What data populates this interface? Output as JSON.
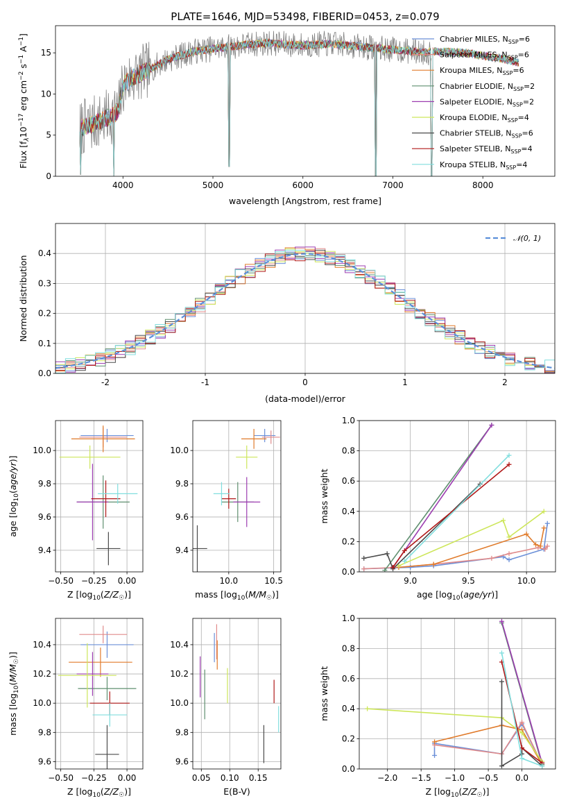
{
  "title": "PLATE=1646, MJD=53498, FIBERID=0453, z=0.079",
  "colors": {
    "chabrier_miles": "#6a8fd8",
    "salpeter_miles": "#e08a8a",
    "kroupa_miles": "#e07a2a",
    "chabrier_elodie": "#5f8f6f",
    "salpeter_elodie": "#9c3cb0",
    "kroupa_elodie": "#cde65a",
    "chabrier_stelib": "#4a4a4a",
    "salpeter_stelib": "#b01818",
    "kroupa_stelib": "#80dede",
    "spectrum": "#808080",
    "gauss": "#5b8fd9",
    "grid": "#b0b0b0"
  },
  "chart_data": [
    {
      "id": "spectrum",
      "type": "line",
      "xlabel": "wavelength [Angstrom, rest frame]",
      "ylabel": "Flux [f$_\\lambda$10$^{-17}$ erg cm$^{-2}$ s$^{-1}$ A$^{-1}$]",
      "ylabel_parts": [
        "Flux [f",
        "λ",
        "10",
        "−17",
        " erg cm",
        "−2",
        " s",
        "−1",
        " A",
        "−1",
        "]"
      ],
      "xlim": [
        3250,
        8800
      ],
      "ylim": [
        0,
        18.3
      ],
      "xticks": [
        4000,
        5000,
        6000,
        7000,
        8000
      ],
      "yticks": [
        0,
        5,
        10,
        15
      ],
      "grid": false,
      "legend_placement": "right",
      "series": [
        {
          "name": "Chabrier MILES",
          "nssp": "6"
        },
        {
          "name": "Salpeter MILES",
          "nssp": "6"
        },
        {
          "name": "Kroupa MILES",
          "nssp": "6"
        },
        {
          "name": "Chabrier ELODIE",
          "nssp": "2"
        },
        {
          "name": "Salpeter ELODIE",
          "nssp": "2"
        },
        {
          "name": "Kroupa ELODIE",
          "nssp": "4"
        },
        {
          "name": "Chabrier STELIB",
          "nssp": "6"
        },
        {
          "name": "Salpeter STELIB",
          "nssp": "4"
        },
        {
          "name": "Kroupa STELIB",
          "nssp": "4"
        }
      ],
      "legend_suffix": ", N",
      "legend_sub": "SSP",
      "continuum": {
        "x": [
          3520,
          3700,
          3850,
          3950,
          4000,
          4100,
          4300,
          4500,
          4800,
          5000,
          5300,
          5600,
          6000,
          6300,
          6600,
          7000,
          7400
        ],
        "y": [
          5.8,
          6.5,
          7.2,
          8.0,
          11.0,
          12.0,
          13.0,
          14.2,
          15.2,
          15.5,
          15.9,
          16.2,
          15.9,
          16.1,
          15.8,
          15.4,
          15.0
        ]
      },
      "continuum_model_ext": {
        "x": [
          7400,
          7800,
          8200,
          8400
        ],
        "y": [
          15.2,
          15.0,
          14.3,
          13.8
        ]
      },
      "dips": [
        {
          "x": 3530,
          "y": 0.2
        },
        {
          "x": 3900,
          "y": 0
        },
        {
          "x": 5180,
          "y": 1.2
        },
        {
          "x": 6810,
          "y": 0
        },
        {
          "x": 7430,
          "y": 0
        }
      ]
    },
    {
      "id": "residuals",
      "type": "histogram",
      "xlabel": "(data-model)/error",
      "ylabel": "Normed distribution",
      "xlim": [
        -2.5,
        2.5
      ],
      "ylim": [
        0,
        0.5
      ],
      "xticks": [
        -2,
        -1,
        0,
        1,
        2
      ],
      "yticks": [
        0,
        0.1,
        0.2,
        0.3,
        0.4
      ],
      "grid": true,
      "legend": [
        "𝒩(0, 1)"
      ],
      "legend_placement": "top-right",
      "bin_width": 0.1
    },
    {
      "id": "age_vs_Z",
      "type": "scatter-errorbar",
      "xlabel": "Z [log₁₀(Z/Z☉)]",
      "ylabel": "age  [log₁₀(age/yr)]",
      "xlim": [
        -0.54,
        0.12
      ],
      "ylim": [
        9.27,
        10.18
      ],
      "xticks": [
        -0.5,
        -0.25,
        0.0
      ],
      "xtick_labels": [
        "−0.50",
        "−0.25",
        "0.00"
      ],
      "yticks": [
        9.4,
        9.6,
        9.8,
        10.0
      ],
      "grid": true,
      "points": [
        {
          "s": "chabrier_miles",
          "x": -0.15,
          "xerr": 0.2,
          "y": 10.09,
          "yerr": 0.04
        },
        {
          "s": "salpeter_miles",
          "x": -0.18,
          "xerr": 0.18,
          "y": 10.08,
          "yerr": 0.06
        },
        {
          "s": "kroupa_miles",
          "x": -0.18,
          "xerr": 0.24,
          "y": 10.07,
          "yerr": 0.08
        },
        {
          "s": "chabrier_elodie",
          "x": -0.18,
          "xerr": 0.2,
          "y": 9.69,
          "yerr": 0.16
        },
        {
          "s": "salpeter_elodie",
          "x": -0.26,
          "xerr": 0.12,
          "y": 9.69,
          "yerr": 0.23
        },
        {
          "s": "kroupa_elodie",
          "x": -0.28,
          "xerr": 0.23,
          "y": 9.96,
          "yerr": 0.07
        },
        {
          "s": "chabrier_stelib",
          "x": -0.14,
          "xerr": 0.09,
          "y": 9.41,
          "yerr": 0.1
        },
        {
          "s": "salpeter_stelib",
          "x": -0.16,
          "xerr": 0.11,
          "y": 9.71,
          "yerr": 0.11
        },
        {
          "s": "kroupa_stelib",
          "x": -0.07,
          "xerr": 0.15,
          "y": 9.74,
          "yerr": 0.06
        }
      ]
    },
    {
      "id": "age_vs_mass",
      "type": "scatter-errorbar",
      "xlabel": "mass [log₁₀(M/M☉)]",
      "xlim": [
        9.6,
        10.58
      ],
      "ylim": [
        9.27,
        10.18
      ],
      "xticks": [
        10.0,
        10.5
      ],
      "xtick_labels": [
        "10.0",
        "10.5"
      ],
      "yticks": [
        9.4,
        9.6,
        9.8,
        10.0
      ],
      "grid": true,
      "points": [
        {
          "s": "chabrier_miles",
          "x": 10.4,
          "xerr": 0.12,
          "y": 10.09,
          "yerr": 0.04
        },
        {
          "s": "salpeter_miles",
          "x": 10.47,
          "xerr": 0.1,
          "y": 10.08,
          "yerr": 0.04
        },
        {
          "s": "kroupa_miles",
          "x": 10.28,
          "xerr": 0.14,
          "y": 10.07,
          "yerr": 0.06
        },
        {
          "s": "chabrier_elodie",
          "x": 10.1,
          "xerr": 0.18,
          "y": 9.69,
          "yerr": 0.12
        },
        {
          "s": "salpeter_elodie",
          "x": 10.2,
          "xerr": 0.15,
          "y": 9.69,
          "yerr": 0.15
        },
        {
          "s": "kroupa_elodie",
          "x": 10.2,
          "xerr": 0.12,
          "y": 9.96,
          "yerr": 0.07
        },
        {
          "s": "chabrier_stelib",
          "x": 9.65,
          "xerr": 0.11,
          "y": 9.41,
          "yerr": 0.14
        },
        {
          "s": "salpeter_stelib",
          "x": 10.0,
          "xerr": 0.08,
          "y": 9.71,
          "yerr": 0.06
        },
        {
          "s": "kroupa_stelib",
          "x": 9.92,
          "xerr": 0.09,
          "y": 9.74,
          "yerr": 0.07
        }
      ]
    },
    {
      "id": "weight_vs_age",
      "type": "line",
      "xlabel": "age  [log₁₀(age/yr)]",
      "ylabel": "mass weight",
      "xlim": [
        8.56,
        10.25
      ],
      "ylim": [
        0,
        1.0
      ],
      "xticks": [
        9.0,
        9.5,
        10.0
      ],
      "xtick_labels": [
        "9.0",
        "9.5",
        "10.0"
      ],
      "yticks": [
        0,
        0.2,
        0.4,
        0.6,
        0.8,
        1.0
      ],
      "ytick_labels": [
        "0.0",
        "0.2",
        "0.4",
        "0.6",
        "0.8",
        "1.0"
      ],
      "grid": true,
      "series": [
        {
          "s": "chabrier_miles",
          "x": [
            8.6,
            9.0,
            9.2,
            9.8,
            9.85,
            10.15,
            10.18
          ],
          "y": [
            0.02,
            0.03,
            0.04,
            0.1,
            0.08,
            0.15,
            0.32
          ]
        },
        {
          "s": "salpeter_miles",
          "x": [
            8.6,
            8.9,
            9.2,
            9.7,
            9.85,
            10.1,
            10.16,
            10.18
          ],
          "y": [
            0.02,
            0.03,
            0.05,
            0.09,
            0.12,
            0.16,
            0.15,
            0.17
          ]
        },
        {
          "s": "kroupa_miles",
          "x": [
            8.9,
            9.2,
            10.0,
            10.08,
            10.12,
            10.15
          ],
          "y": [
            0.03,
            0.05,
            0.25,
            0.18,
            0.17,
            0.29
          ]
        },
        {
          "s": "chabrier_elodie",
          "x": [
            8.78,
            9.7
          ],
          "y": [
            0.01,
            0.97
          ]
        },
        {
          "s": "salpeter_elodie",
          "x": [
            8.85,
            9.7
          ],
          "y": [
            0.03,
            0.97
          ]
        },
        {
          "s": "kroupa_elodie",
          "x": [
            8.9,
            9.8,
            9.85,
            10.15
          ],
          "y": [
            0.04,
            0.34,
            0.23,
            0.4
          ]
        },
        {
          "s": "chabrier_stelib",
          "x": [
            8.6,
            8.8,
            8.85,
            9.6
          ],
          "y": [
            0.09,
            0.12,
            0.02,
            0.58
          ]
        },
        {
          "s": "salpeter_stelib",
          "x": [
            8.85,
            8.95,
            9.85
          ],
          "y": [
            0.03,
            0.14,
            0.71
          ]
        },
        {
          "s": "kroupa_stelib",
          "x": [
            8.95,
            9.85
          ],
          "y": [
            0.07,
            0.77
          ]
        }
      ]
    },
    {
      "id": "mass_vs_Z",
      "type": "scatter-errorbar",
      "xlabel": "Z [log₁₀(Z/Z☉)]",
      "ylabel": "mass [log₁₀(M/M☉)]",
      "xlim": [
        -0.54,
        0.12
      ],
      "ylim": [
        9.55,
        10.58
      ],
      "xticks": [
        -0.5,
        -0.25,
        0.0
      ],
      "xtick_labels": [
        "−0.50",
        "−0.25",
        "0.00"
      ],
      "yticks": [
        9.6,
        9.8,
        10.0,
        10.2,
        10.4
      ],
      "grid": true,
      "points": [
        {
          "s": "chabrier_miles",
          "x": -0.15,
          "xerr": 0.2,
          "y": 10.4,
          "yerr": 0.09
        },
        {
          "s": "salpeter_miles",
          "x": -0.18,
          "xerr": 0.18,
          "y": 10.47,
          "yerr": 0.06
        },
        {
          "s": "kroupa_miles",
          "x": -0.2,
          "xerr": 0.24,
          "y": 10.28,
          "yerr": 0.1
        },
        {
          "s": "chabrier_elodie",
          "x": -0.15,
          "xerr": 0.22,
          "y": 10.1,
          "yerr": 0.08
        },
        {
          "s": "salpeter_elodie",
          "x": -0.26,
          "xerr": 0.12,
          "y": 10.2,
          "yerr": 0.15
        },
        {
          "s": "kroupa_elodie",
          "x": -0.3,
          "xerr": 0.22,
          "y": 10.19,
          "yerr": 0.22
        },
        {
          "s": "chabrier_stelib",
          "x": -0.15,
          "xerr": 0.09,
          "y": 9.65,
          "yerr": 0.2
        },
        {
          "s": "salpeter_stelib",
          "x": -0.13,
          "xerr": 0.15,
          "y": 10.0,
          "yerr": 0.08
        },
        {
          "s": "kroupa_stelib",
          "x": -0.13,
          "xerr": 0.13,
          "y": 9.92,
          "yerr": 0.08
        }
      ]
    },
    {
      "id": "mass_vs_ebv",
      "type": "scatter-errorbar",
      "xlabel": "E(B-V)",
      "xlim": [
        0.035,
        0.19
      ],
      "ylim": [
        9.55,
        10.58
      ],
      "xticks": [
        0.05,
        0.1,
        0.15
      ],
      "xtick_labels": [
        "0.05",
        "0.10",
        "0.15"
      ],
      "yticks": [
        9.6,
        9.8,
        10.0,
        10.2,
        10.4
      ],
      "grid": true,
      "points": [
        {
          "s": "chabrier_miles",
          "x": 0.073,
          "y": 10.38,
          "yerr": 0.1
        },
        {
          "s": "salpeter_miles",
          "x": 0.077,
          "y": 10.42,
          "yerr": 0.12
        },
        {
          "s": "kroupa_miles",
          "x": 0.078,
          "y": 10.33,
          "yerr": 0.1
        },
        {
          "s": "chabrier_elodie",
          "x": 0.056,
          "y": 10.06,
          "yerr": 0.17
        },
        {
          "s": "salpeter_elodie",
          "x": 0.048,
          "y": 10.18,
          "yerr": 0.14
        },
        {
          "s": "kroupa_elodie",
          "x": 0.096,
          "y": 10.12,
          "yerr": 0.12
        },
        {
          "s": "chabrier_stelib",
          "x": 0.16,
          "y": 9.72,
          "yerr": 0.13
        },
        {
          "s": "salpeter_stelib",
          "x": 0.178,
          "y": 10.08,
          "yerr": 0.08
        },
        {
          "s": "kroupa_stelib",
          "x": 0.186,
          "y": 9.89,
          "yerr": 0.09
        }
      ]
    },
    {
      "id": "weight_vs_Z",
      "type": "line",
      "xlabel": "Z [log₁₀(Z/Z☉)]",
      "ylabel": "mass weight",
      "xlim": [
        -2.42,
        0.5
      ],
      "ylim": [
        0,
        1.0
      ],
      "xticks": [
        -2.0,
        -1.5,
        -1.0,
        -0.5,
        0.0
      ],
      "xtick_labels": [
        "−2.0",
        "−1.5",
        "−1.0",
        "−0.5",
        "0.0"
      ],
      "yticks": [
        0,
        0.2,
        0.4,
        0.6,
        0.8,
        1.0
      ],
      "ytick_labels": [
        "0.0",
        "0.2",
        "0.4",
        "0.6",
        "0.8",
        "1.0"
      ],
      "grid": true,
      "series": [
        {
          "s": "chabrier_miles",
          "x": [
            -1.3,
            -1.3,
            -0.3,
            0.0,
            0.3
          ],
          "y": [
            0.09,
            0.17,
            0.1,
            0.3,
            0.03
          ]
        },
        {
          "s": "salpeter_miles",
          "x": [
            -1.3,
            -0.3,
            0.0,
            0.3
          ],
          "y": [
            0.16,
            0.1,
            0.31,
            0.03
          ]
        },
        {
          "s": "kroupa_miles",
          "x": [
            -1.3,
            -0.3,
            0.0,
            0.3
          ],
          "y": [
            0.18,
            0.29,
            0.26,
            0.03
          ]
        },
        {
          "s": "chabrier_elodie",
          "x": [
            -0.3,
            0.3
          ],
          "y": [
            0.97,
            0.03
          ]
        },
        {
          "s": "salpeter_elodie",
          "x": [
            -0.3,
            0.3
          ],
          "y": [
            0.98,
            0.04
          ]
        },
        {
          "s": "kroupa_elodie",
          "x": [
            -2.3,
            -0.3,
            0.0,
            0.3
          ],
          "y": [
            0.4,
            0.34,
            0.24,
            0.05
          ]
        },
        {
          "s": "chabrier_stelib",
          "x": [
            -0.3,
            -0.3,
            0.0,
            0.0,
            0.3
          ],
          "y": [
            0.58,
            0.02,
            0.1,
            0.14,
            0.02
          ]
        },
        {
          "s": "salpeter_stelib",
          "x": [
            -0.3,
            0.0,
            0.3
          ],
          "y": [
            0.71,
            0.14,
            0.04
          ]
        },
        {
          "s": "kroupa_stelib",
          "x": [
            -0.3,
            0.0,
            0.3
          ],
          "y": [
            0.77,
            0.07,
            0.02
          ]
        }
      ]
    }
  ],
  "axis_labels": {
    "age_ylabel": {
      "pre": "age  [log",
      "sub": "10",
      "mid": "(",
      "it": "age/yr",
      "post": ")]"
    },
    "Z_xlabel": {
      "pre": "Z [log",
      "sub": "10",
      "mid": "(",
      "it": "Z/Z",
      "sun": "☉",
      "post": ")]"
    },
    "mass_xlabel": {
      "pre": "mass [log",
      "sub": "10",
      "mid": "(",
      "it": "M/M",
      "sun": "☉",
      "post": ")]"
    },
    "ebv_xlabel": "E(B-V)",
    "weight_ylabel": "mass weight"
  }
}
